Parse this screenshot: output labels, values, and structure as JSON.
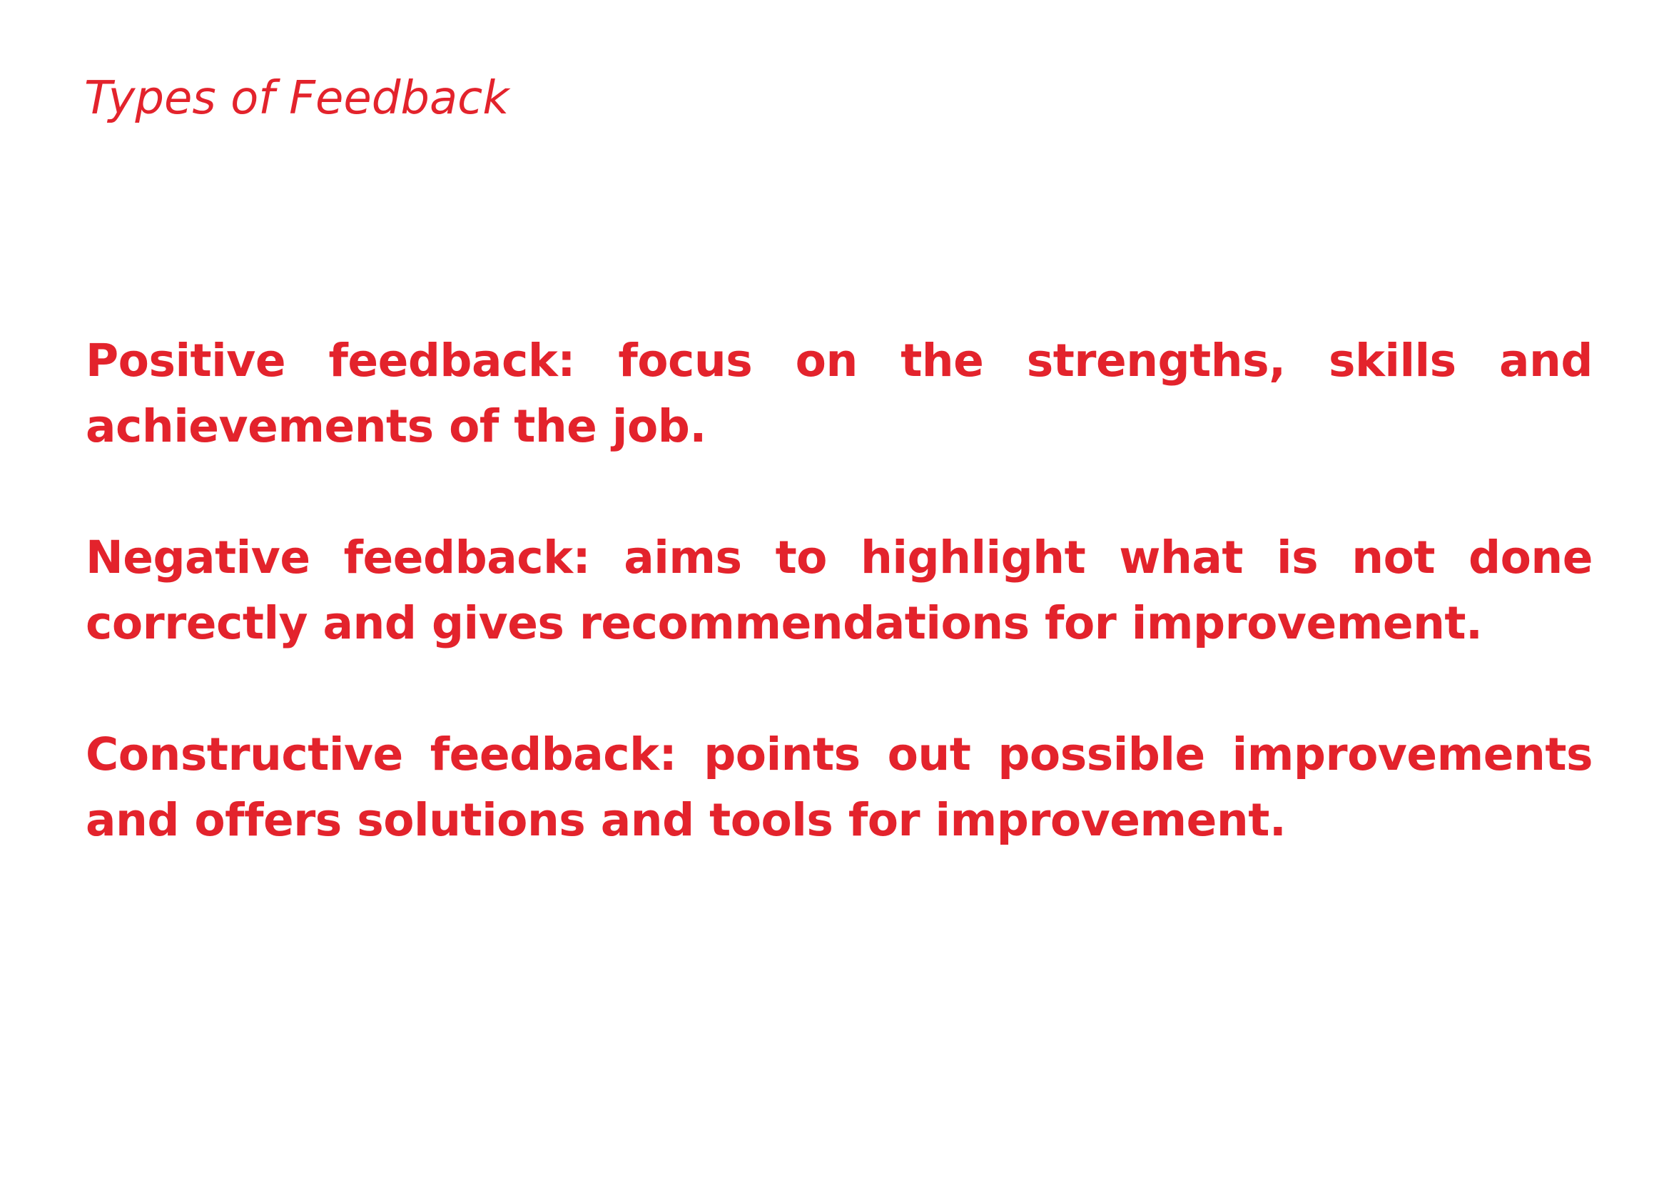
{
  "document": {
    "title": "Types of Feedback",
    "paragraphs": [
      "Positive feedback: focus on the strengths, skills and achievements of the job.",
      "Negative feedback: aims to highlight what is not done correctly and gives recommendations for improvement.",
      "Constructive feedback: points out possible improvements and offers solutions and tools for improvement."
    ]
  },
  "colors": {
    "text": "#e3232c",
    "background": "#ffffff"
  }
}
